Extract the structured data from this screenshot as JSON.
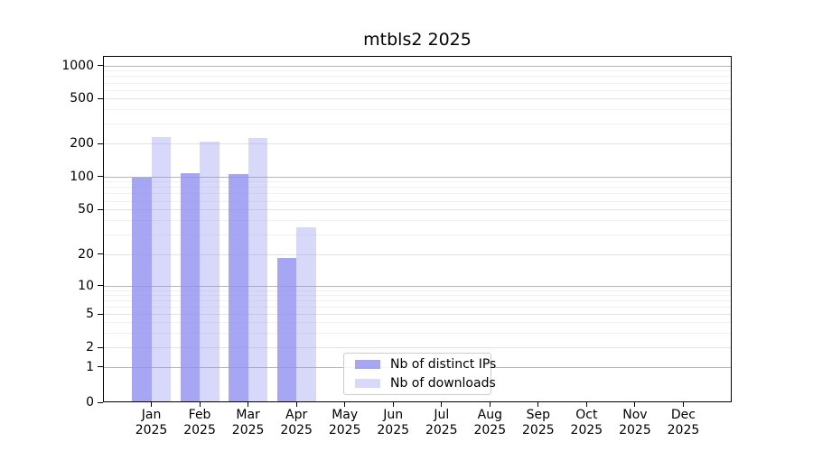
{
  "chart_data": {
    "type": "bar",
    "title": "mtbls2 2025",
    "categories": [
      "Jan",
      "Feb",
      "Mar",
      "Apr",
      "May",
      "Jun",
      "Jul",
      "Aug",
      "Sep",
      "Oct",
      "Nov",
      "Dec"
    ],
    "x_tick_year_line": "2025",
    "series": [
      {
        "name": "Nb of distinct IPs",
        "color": "rgba(144,144,242,0.80)",
        "values": [
          95,
          105,
          103,
          18,
          null,
          null,
          null,
          null,
          null,
          null,
          null,
          null
        ]
      },
      {
        "name": "Nb of downloads",
        "color": "rgba(144,144,242,0.35)",
        "values": [
          225,
          205,
          220,
          34,
          null,
          null,
          null,
          null,
          null,
          null,
          null,
          null
        ]
      }
    ],
    "y_axis": {
      "scale": "symlog",
      "ticks": [
        0,
        1,
        2,
        5,
        10,
        20,
        50,
        100,
        200,
        500,
        1000
      ]
    },
    "grid": "on",
    "legend": {
      "position": "inside-bottom-center"
    }
  },
  "colors": {
    "background": "#ffffff",
    "spine": "#000000",
    "grid_major": "#b5b5b5",
    "grid_sub": "#e3e3e3",
    "grid_minor": "#f1f1f1",
    "legend_border": "#cccccc",
    "text": "#000000"
  }
}
